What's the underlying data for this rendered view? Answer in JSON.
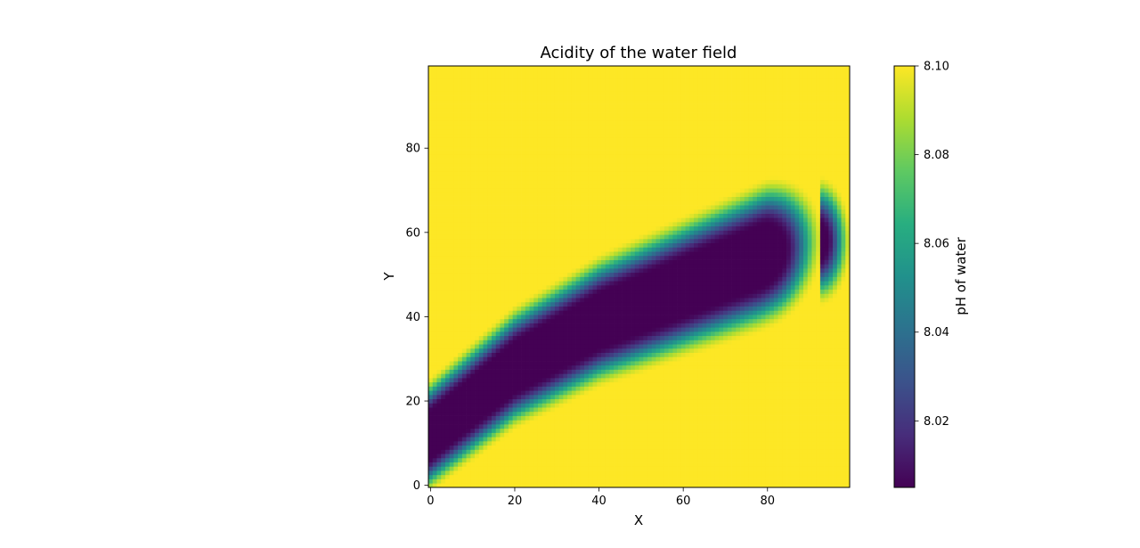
{
  "chart_data": {
    "type": "heatmap",
    "title": "Acidity of the water field",
    "xlabel": "X",
    "ylabel": "Y",
    "xlim": [
      -0.5,
      99.5
    ],
    "ylim": [
      -0.5,
      99.5
    ],
    "grid_size": 100,
    "xticks": [
      0,
      20,
      40,
      60,
      80
    ],
    "yticks": [
      0,
      20,
      40,
      60,
      80
    ],
    "colormap": "viridis",
    "colorbar": {
      "label": "pH of water",
      "vmin": 8.005,
      "vmax": 8.1,
      "ticks": [
        "8.02",
        "8.04",
        "8.06",
        "8.08",
        "8.10"
      ],
      "tick_values": [
        8.02,
        8.04,
        8.06,
        8.08,
        8.1
      ]
    },
    "background_value": 8.1,
    "plume": {
      "description_points": [
        {
          "x": 0,
          "y": 12,
          "value": 8.005
        },
        {
          "x": 20,
          "y": 28,
          "value": 8.005
        },
        {
          "x": 40,
          "y": 39,
          "value": 8.005
        },
        {
          "x": 60,
          "y": 47,
          "value": 8.005
        },
        {
          "x": 80,
          "y": 55,
          "value": 8.005
        },
        {
          "x": 92,
          "y": 58,
          "value": 8.06
        }
      ]
    }
  }
}
